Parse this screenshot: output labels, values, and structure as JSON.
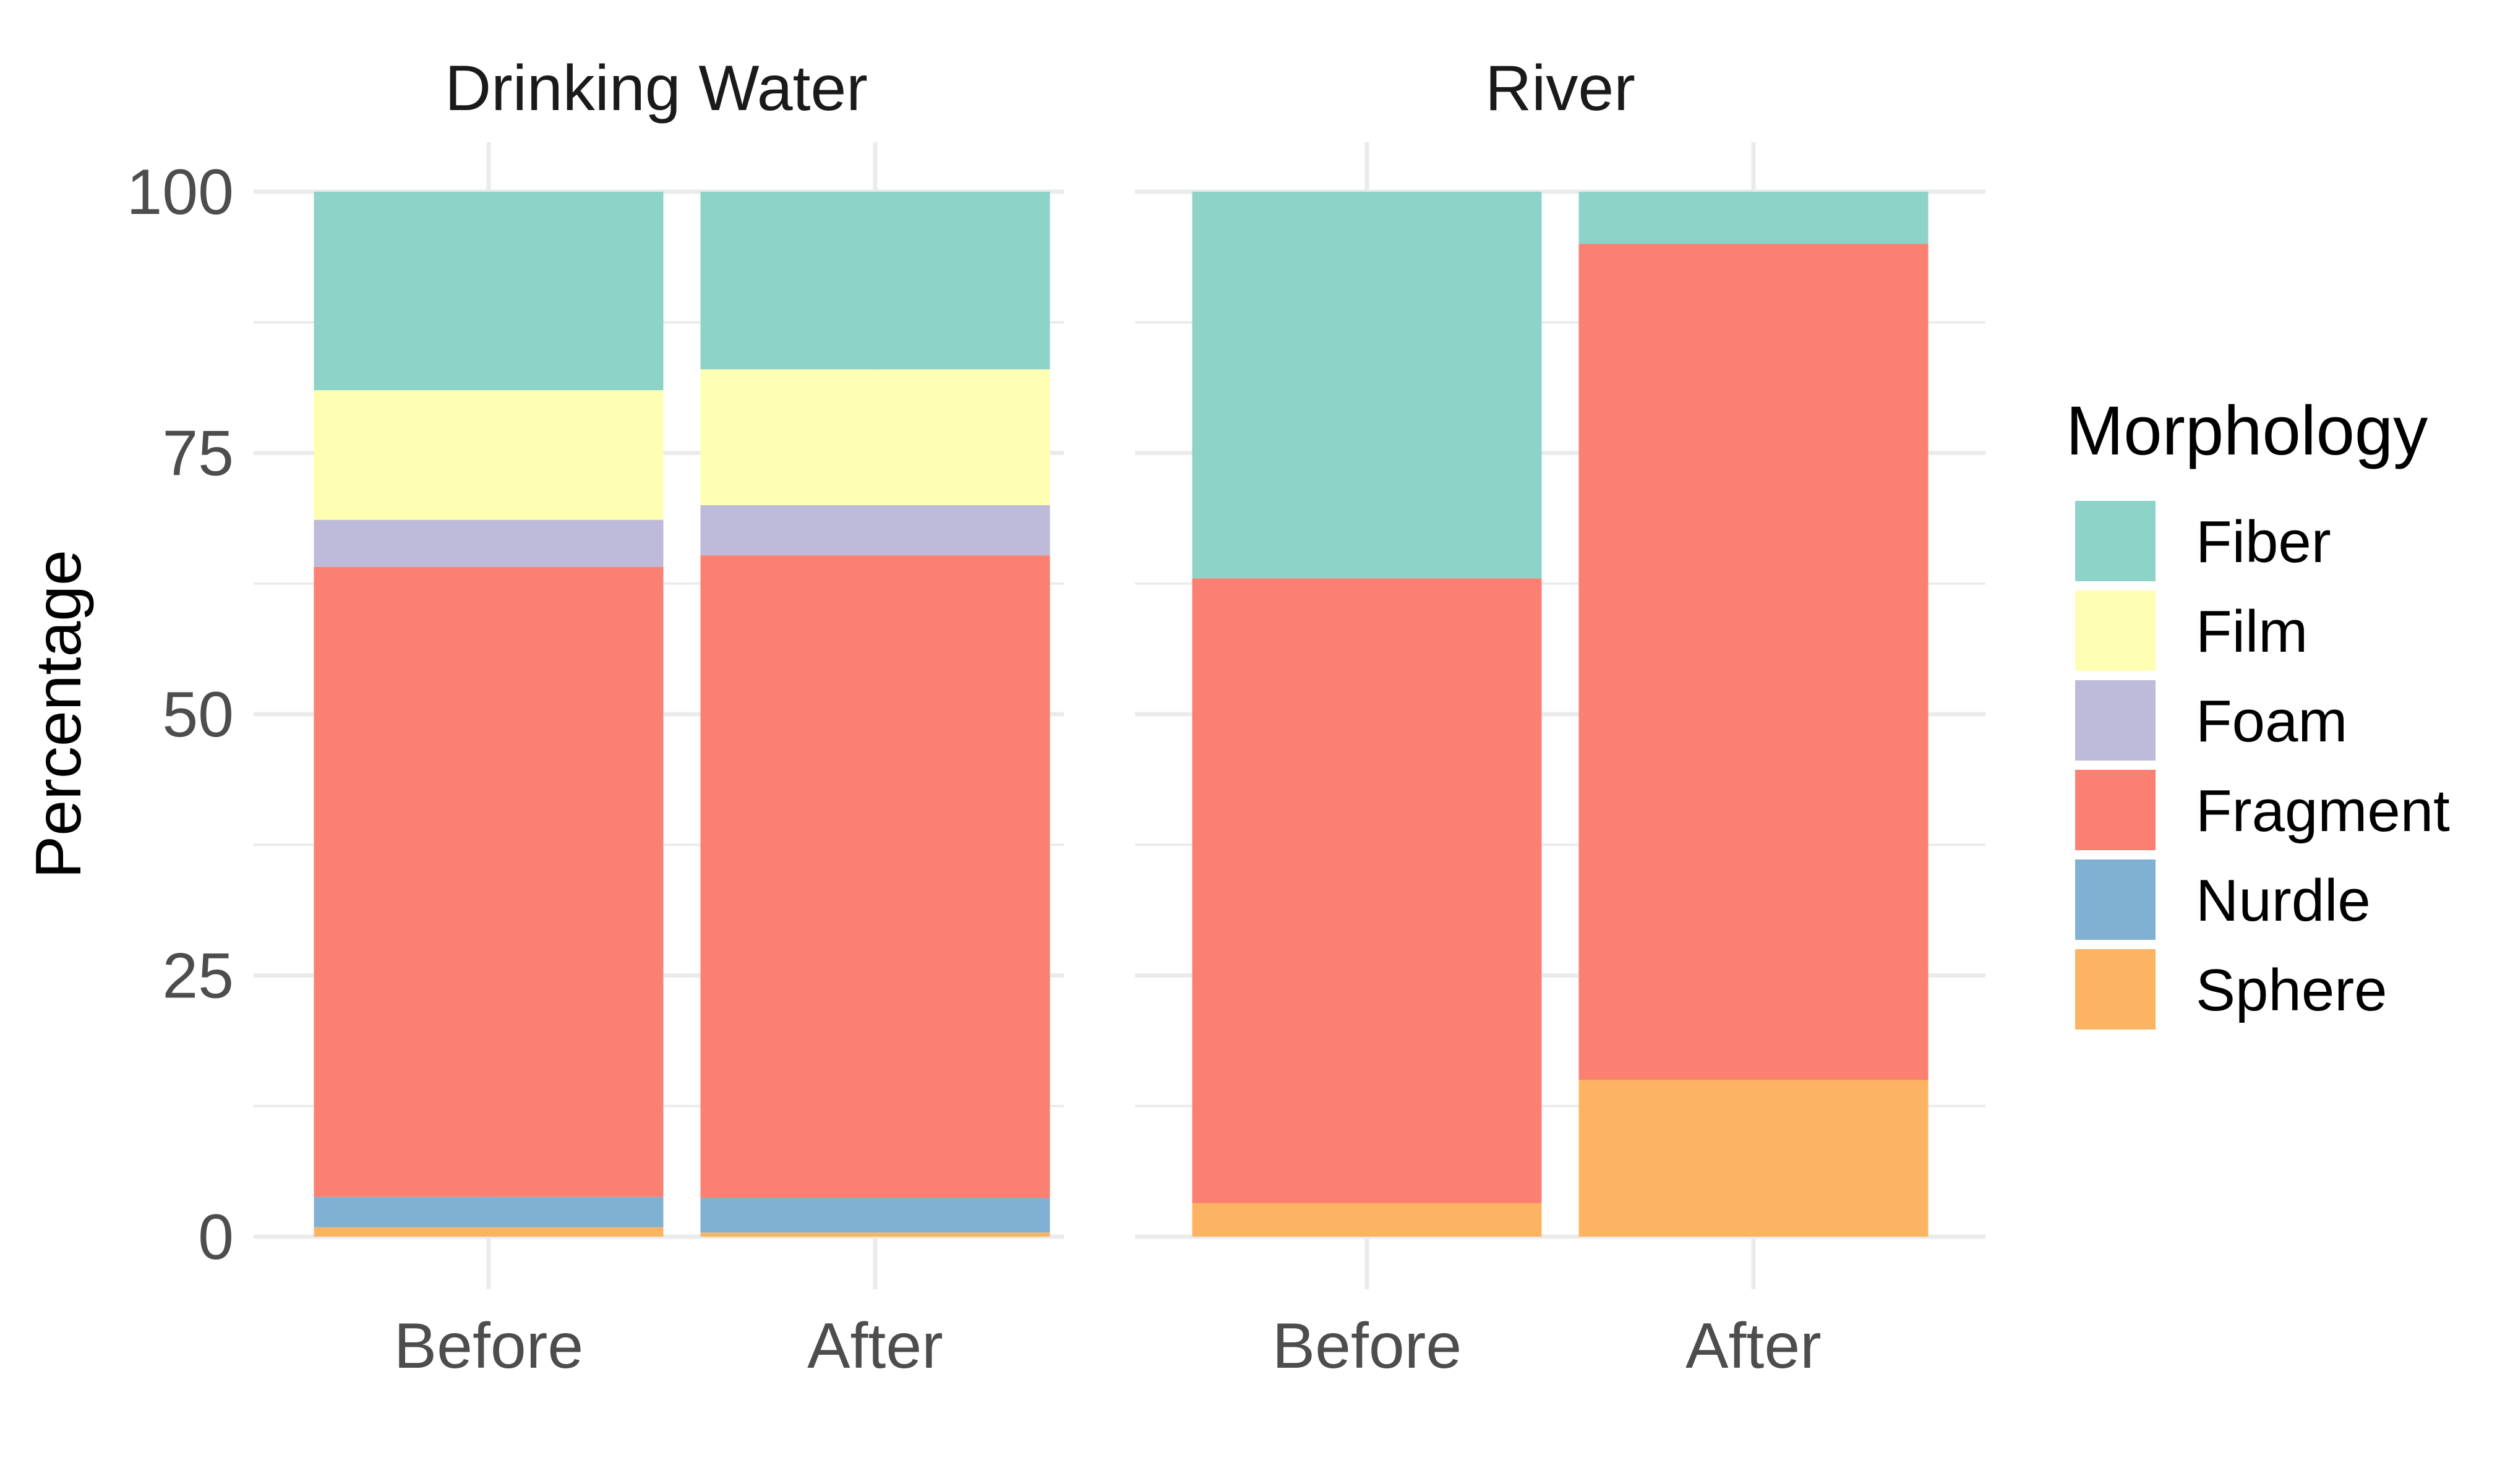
{
  "chart_data": {
    "type": "bar",
    "stacked": true,
    "ylabel": "Percentage",
    "xlabel": "",
    "ylim": [
      0,
      100
    ],
    "yticks": [
      0,
      25,
      50,
      75,
      100
    ],
    "grid": true,
    "legend": {
      "title": "Morphology",
      "position": "right",
      "items": [
        {
          "name": "Fiber",
          "color": "#8DD3C7"
        },
        {
          "name": "Film",
          "color": "#FFFFB3"
        },
        {
          "name": "Foam",
          "color": "#BEBADA"
        },
        {
          "name": "Fragment",
          "color": "#FB8072"
        },
        {
          "name": "Nurdle",
          "color": "#80B1D3"
        },
        {
          "name": "Sphere",
          "color": "#FDB462"
        }
      ]
    },
    "panels": [
      {
        "title": "Drinking Water",
        "categories": [
          "Before",
          "After"
        ],
        "series": [
          {
            "name": "Sphere",
            "values": [
              0.9,
              0.4
            ]
          },
          {
            "name": "Nurdle",
            "values": [
              2.9,
              3.3
            ]
          },
          {
            "name": "Fragment",
            "values": [
              60.3,
              61.5
            ]
          },
          {
            "name": "Foam",
            "values": [
              4.5,
              4.8
            ]
          },
          {
            "name": "Film",
            "values": [
              12.4,
              13.0
            ]
          },
          {
            "name": "Fiber",
            "values": [
              19.0,
              17.0
            ]
          }
        ]
      },
      {
        "title": "River",
        "categories": [
          "Before",
          "After"
        ],
        "series": [
          {
            "name": "Sphere",
            "values": [
              3.2,
              15.0
            ]
          },
          {
            "name": "Nurdle",
            "values": [
              0,
              0
            ]
          },
          {
            "name": "Fragment",
            "values": [
              59.8,
              80.0
            ]
          },
          {
            "name": "Foam",
            "values": [
              0,
              0
            ]
          },
          {
            "name": "Film",
            "values": [
              0,
              0
            ]
          },
          {
            "name": "Fiber",
            "values": [
              37.0,
              5.0
            ]
          }
        ]
      }
    ]
  }
}
